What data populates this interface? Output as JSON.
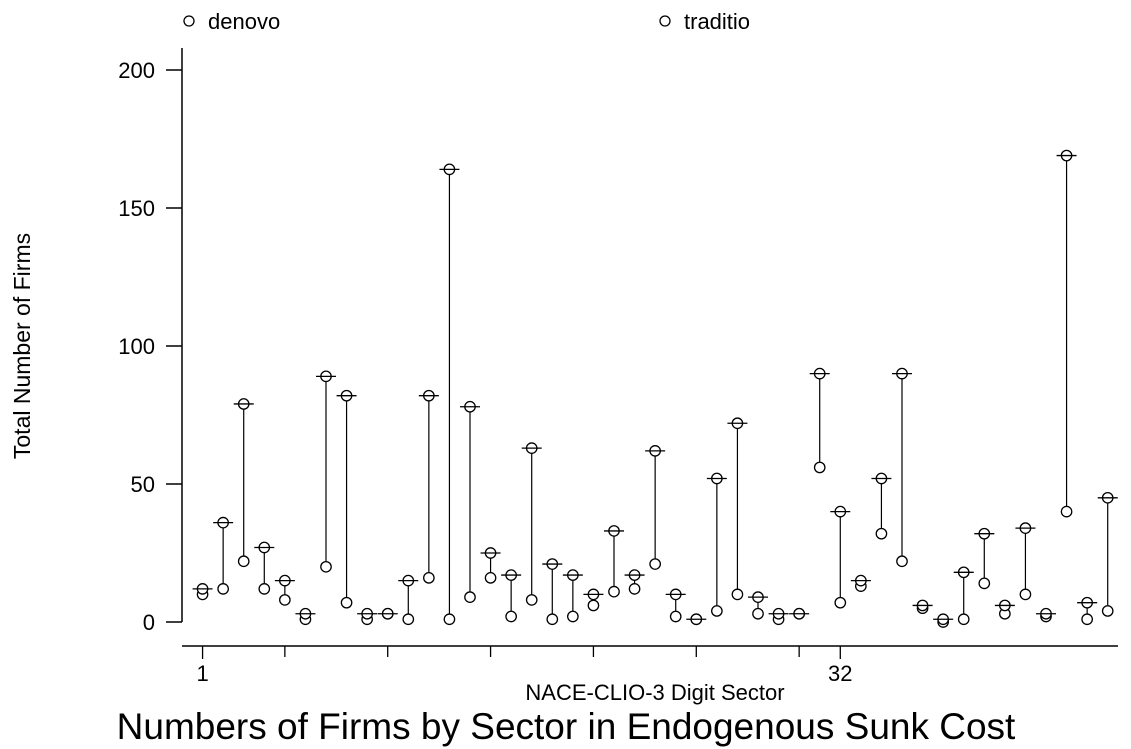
{
  "chart_data": {
    "type": "scatter",
    "title": "Numbers of Firms by Sector in Endogenous Sunk Cost",
    "xlabel": "NACE-CLIO-3 Digit Sector",
    "ylabel": "Total Number of Firms",
    "ylim": [
      0,
      200
    ],
    "xlim": [
      0,
      45.5
    ],
    "y_ticks": [
      0,
      50,
      100,
      150,
      200
    ],
    "x_tick_labels": [
      {
        "value": 1,
        "label": "1"
      },
      {
        "value": 32,
        "label": "32"
      }
    ],
    "x_minor_ticks": [
      1,
      5,
      10,
      15,
      20,
      25,
      30,
      32
    ],
    "grid": false,
    "legend_placement": "top",
    "series": [
      {
        "name": "denovo",
        "marker": "hollow-circle",
        "values": [
          10,
          12,
          22,
          12,
          8,
          1,
          20,
          7,
          1,
          3,
          1,
          16,
          1,
          9,
          16,
          2,
          8,
          1,
          2,
          6,
          11,
          12,
          21,
          2,
          1,
          4,
          10,
          3,
          1,
          3,
          56,
          7,
          13,
          32,
          22,
          5,
          0,
          1,
          14,
          3,
          10,
          2,
          40,
          1,
          4
        ]
      },
      {
        "name": "traditio",
        "marker": "hollow-circle-with-bar",
        "values": [
          12,
          36,
          79,
          27,
          15,
          3,
          89,
          82,
          3,
          3,
          15,
          82,
          164,
          78,
          25,
          17,
          63,
          21,
          17,
          10,
          33,
          17,
          62,
          10,
          1,
          52,
          72,
          9,
          3,
          3,
          90,
          40,
          15,
          52,
          90,
          6,
          1,
          18,
          32,
          6,
          34,
          3,
          169,
          7,
          45
        ]
      }
    ],
    "x": [
      1,
      2,
      3,
      4,
      5,
      6,
      7,
      8,
      9,
      10,
      11,
      12,
      13,
      14,
      15,
      16,
      17,
      18,
      19,
      20,
      21,
      22,
      23,
      24,
      25,
      26,
      27,
      28,
      29,
      30,
      31,
      32,
      33,
      34,
      35,
      36,
      37,
      38,
      39,
      40,
      41,
      42,
      43,
      44,
      45
    ],
    "range_lines": true
  }
}
